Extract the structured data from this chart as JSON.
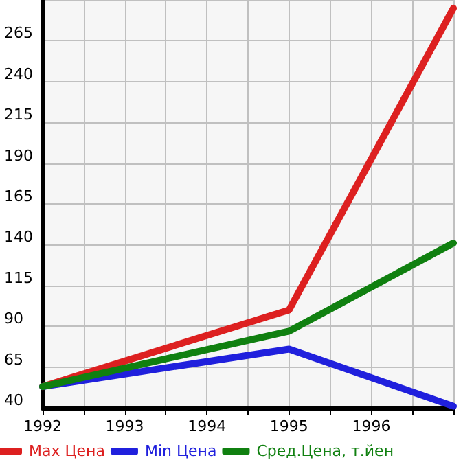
{
  "chart_data": {
    "type": "line",
    "x": [
      1992,
      1995,
      1997
    ],
    "series": [
      {
        "name": "Max Цена",
        "color": "#dd2020",
        "values": [
          53,
          100,
          285
        ]
      },
      {
        "name": "Min Цена",
        "color": "#2020dd",
        "values": [
          53,
          76,
          41
        ]
      },
      {
        "name": "Сред.Цена, т.йен",
        "color": "#108010",
        "values": [
          53,
          87,
          141
        ]
      }
    ],
    "xlim": [
      1992,
      1997
    ],
    "xticks": [
      1992,
      {
        "value": 1992.5,
        "label": null
      },
      1993,
      {
        "value": 1993.5,
        "label": null
      },
      1994,
      {
        "value": 1994.5,
        "label": null
      },
      1995,
      {
        "value": 1995.5,
        "label": null
      },
      1996,
      {
        "value": 1996.5,
        "label": null
      },
      {
        "value": 1997,
        "label": null
      }
    ],
    "ylim": [
      40,
      290
    ],
    "yticks": [
      40,
      65,
      90,
      115,
      140,
      165,
      190,
      215,
      240,
      265,
      {
        "value": 290,
        "label": null
      }
    ],
    "grid": true,
    "legend": "bottom",
    "marker": "none",
    "line_style": "solid"
  }
}
